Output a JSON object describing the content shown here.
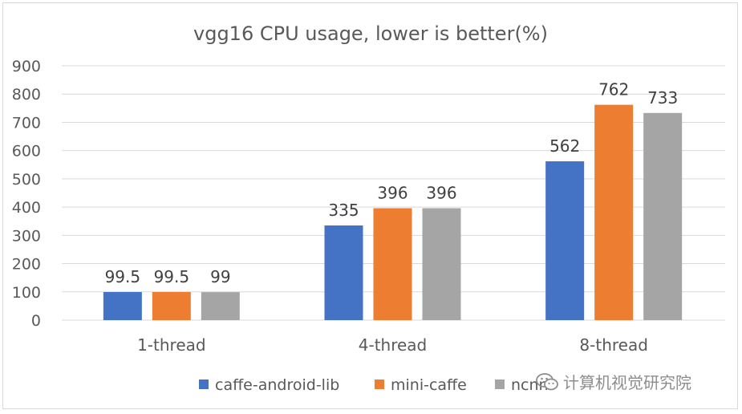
{
  "chart_data": {
    "type": "bar",
    "title": "vgg16 CPU usage, lower is better(%)",
    "xlabel": "",
    "ylabel": "",
    "categories": [
      "1-thread",
      "4-thread",
      "8-thread"
    ],
    "series": [
      {
        "name": "caffe-android-lib",
        "values": [
          99.5,
          335,
          562
        ],
        "labels": [
          "99.5",
          "335",
          "562"
        ],
        "color": "#4472c4"
      },
      {
        "name": "mini-caffe",
        "values": [
          99.5,
          396,
          762
        ],
        "labels": [
          "99.5",
          "396",
          "762"
        ],
        "color": "#ed7d31"
      },
      {
        "name": "ncnn",
        "values": [
          99,
          396,
          733
        ],
        "labels": [
          "99",
          "396",
          "733"
        ],
        "color": "#a5a5a5"
      }
    ],
    "ylim": [
      0,
      900
    ],
    "yticks": [
      0,
      100,
      200,
      300,
      400,
      500,
      600,
      700,
      800,
      900
    ],
    "grid": true,
    "legend_position": "bottom"
  },
  "watermark": {
    "text": "计算机视觉研究院",
    "icon": "wechat-icon"
  },
  "colors": {
    "gridline": "#d9d9d9",
    "text": "#595959",
    "title": "#595959"
  }
}
